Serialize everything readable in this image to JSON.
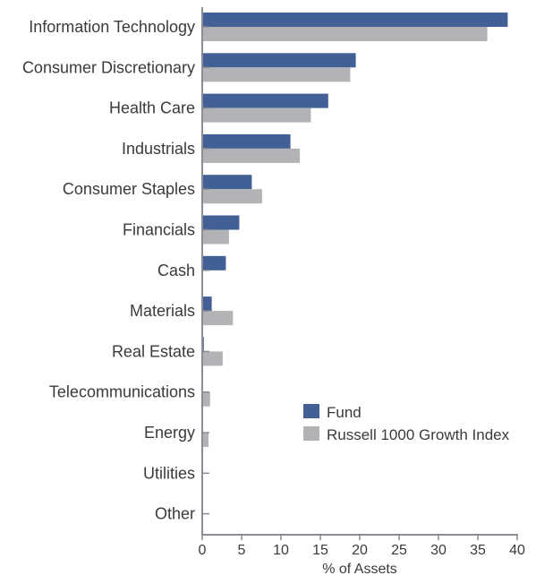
{
  "chart_data": {
    "type": "bar",
    "orientation": "horizontal",
    "categories": [
      "Information Technology",
      "Consumer Discretionary",
      "Health Care",
      "Industrials",
      "Consumer Staples",
      "Financials",
      "Cash",
      "Materials",
      "Real Estate",
      "Telecommunications",
      "Energy",
      "Utilities",
      "Other"
    ],
    "series": [
      {
        "name": "Fund",
        "color": "#425f96",
        "values": [
          38.8,
          19.5,
          16.0,
          11.2,
          6.3,
          4.7,
          3.0,
          1.2,
          0.2,
          0.0,
          0.0,
          0.0,
          0.0
        ]
      },
      {
        "name": "Russell 1000 Growth Index",
        "color": "#b3b3b6",
        "values": [
          36.2,
          18.8,
          13.8,
          12.4,
          7.6,
          3.4,
          0.0,
          3.9,
          2.6,
          1.0,
          0.8,
          0.0,
          0.0
        ]
      }
    ],
    "xlabel": "% of Assets",
    "ylabel": "",
    "xlim": [
      0,
      40
    ],
    "xticks": [
      0,
      5,
      10,
      15,
      20,
      25,
      30,
      35,
      40
    ],
    "grid": false,
    "legend": "center-right"
  }
}
